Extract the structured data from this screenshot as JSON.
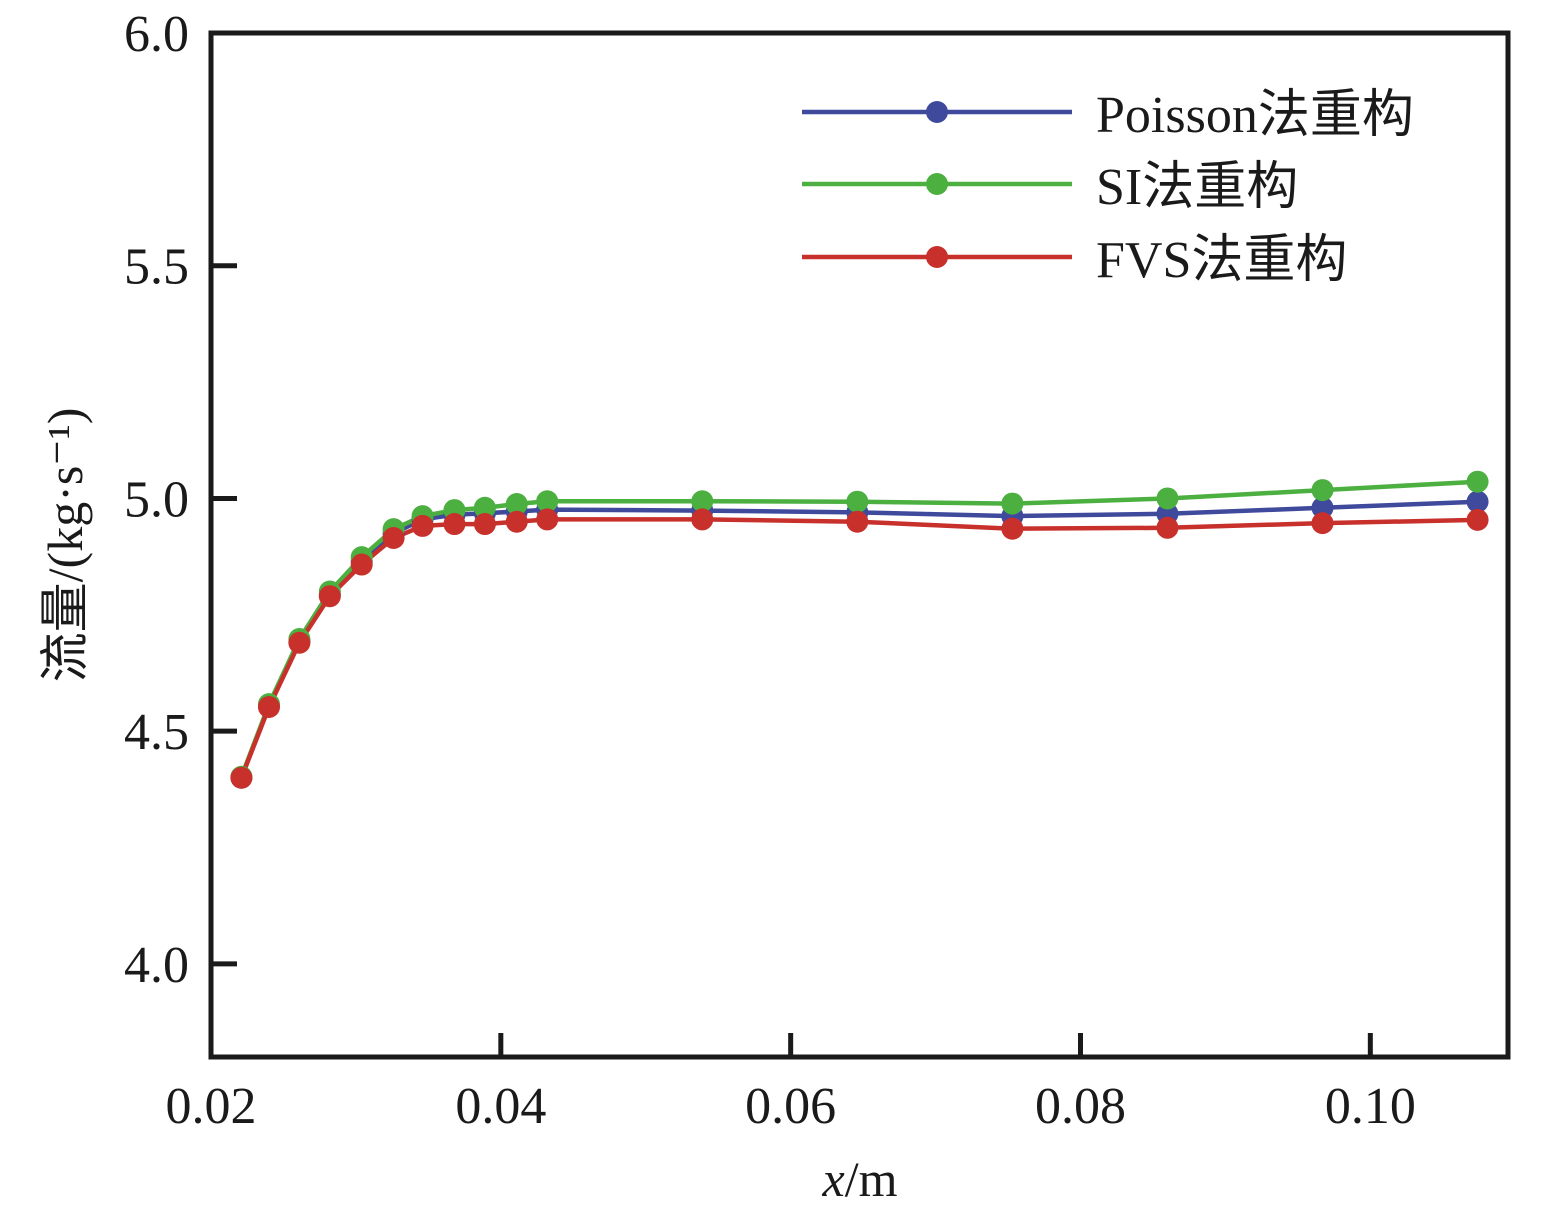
{
  "chart_data": {
    "type": "line",
    "title": "",
    "xlabel": "x/m",
    "xlabel_italic_part": "x",
    "xlabel_unit": "/m",
    "ylabel": "流量/(kg·s⁻¹)",
    "xlim": [
      0.02,
      0.1095
    ],
    "ylim": [
      3.8,
      6.0
    ],
    "xticks": [
      0.02,
      0.04,
      0.06,
      0.08,
      0.1
    ],
    "xtick_labels": [
      "0.02",
      "0.04",
      "0.06",
      "0.08",
      "0.10"
    ],
    "yticks": [
      4.0,
      4.5,
      5.0,
      5.5,
      6.0
    ],
    "ytick_labels": [
      "4.0",
      "4.5",
      "5.0",
      "5.5",
      "6.0"
    ],
    "grid": false,
    "legend_position": "top-right",
    "x": [
      0.0221,
      0.024,
      0.0261,
      0.0282,
      0.0304,
      0.0326,
      0.0346,
      0.0368,
      0.0389,
      0.0411,
      0.0432,
      0.0539,
      0.0646,
      0.0753,
      0.086,
      0.0967,
      0.1074
    ],
    "series": [
      {
        "name": "Poisson法重构",
        "color": "#3f4a9c",
        "values": [
          4.4,
          4.554,
          4.693,
          4.794,
          4.865,
          4.925,
          4.955,
          4.965,
          4.968,
          4.972,
          4.976,
          4.974,
          4.97,
          4.962,
          4.967,
          4.98,
          4.993
        ]
      },
      {
        "name": "SI法重构",
        "color": "#4cb040",
        "values": [
          4.402,
          4.558,
          4.698,
          4.8,
          4.874,
          4.934,
          4.962,
          4.975,
          4.98,
          4.988,
          4.994,
          4.994,
          4.993,
          4.989,
          5.0,
          5.018,
          5.036
        ]
      },
      {
        "name": "FVS法重构",
        "color": "#c8302b",
        "values": [
          4.4,
          4.552,
          4.69,
          4.79,
          4.858,
          4.915,
          4.941,
          4.945,
          4.945,
          4.95,
          4.955,
          4.955,
          4.95,
          4.935,
          4.937,
          4.947,
          4.954
        ]
      }
    ]
  }
}
